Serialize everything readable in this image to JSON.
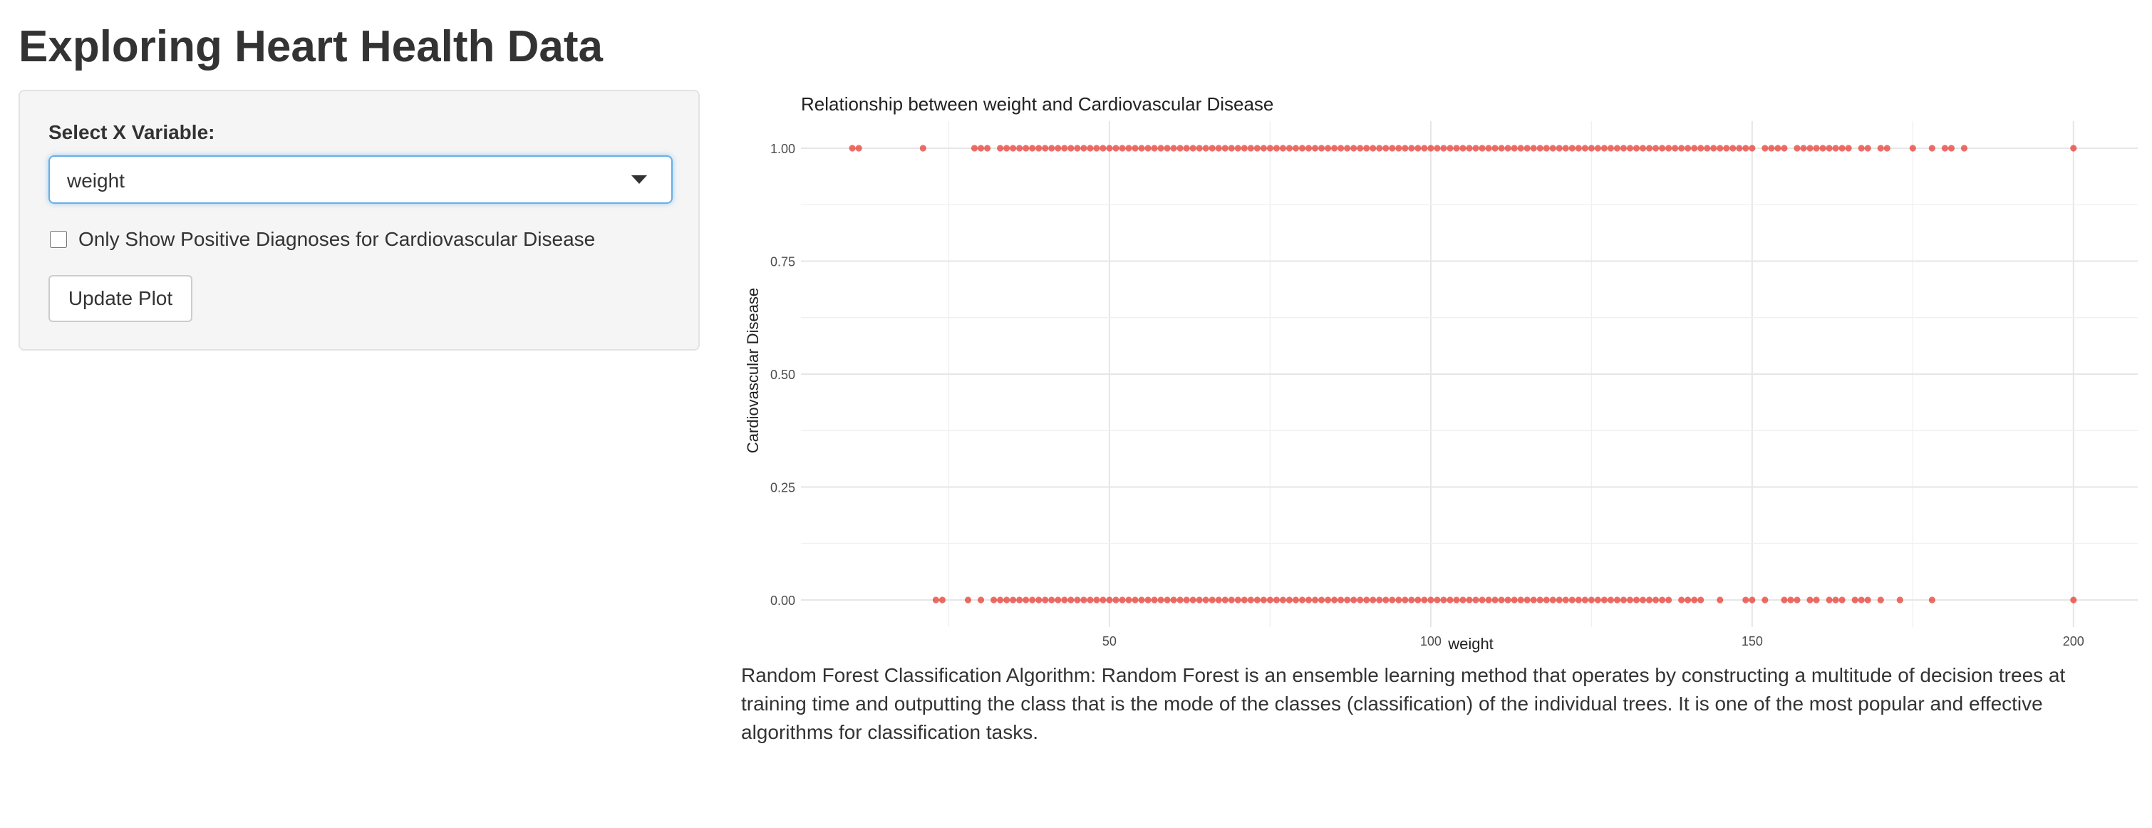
{
  "page": {
    "title": "Exploring Heart Health Data"
  },
  "sidebar": {
    "select_label": "Select X Variable:",
    "select_value": "weight",
    "checkbox_label": "Only Show Positive Diagnoses for Cardiovascular Disease",
    "checkbox_checked": false,
    "update_button_label": "Update Plot"
  },
  "chart_data": {
    "type": "scatter",
    "title": "Relationship between weight and Cardiovascular Disease",
    "xlabel": "weight",
    "ylabel": "Cardiovascular Disease",
    "xlim": [
      2,
      210
    ],
    "ylim": [
      -0.06,
      1.06
    ],
    "x_ticks": [
      50,
      100,
      150,
      200
    ],
    "y_ticks": [
      0.0,
      0.25,
      0.5,
      0.75,
      1.0
    ],
    "x_tick_labels": [
      "50",
      "100",
      "150",
      "200"
    ],
    "y_tick_labels": [
      "0.00",
      "0.25",
      "0.50",
      "0.75",
      "1.00"
    ],
    "grid": true,
    "point_color": "#e8352b",
    "series": [
      {
        "y": 1,
        "x": [
          10,
          11,
          21,
          29,
          30,
          31,
          33,
          34,
          35,
          36,
          37,
          38,
          39,
          40,
          41,
          42,
          43,
          44,
          45,
          46,
          47,
          48,
          49,
          50,
          51,
          52,
          53,
          54,
          55,
          56,
          57,
          58,
          59,
          60,
          61,
          62,
          63,
          64,
          65,
          66,
          67,
          68,
          69,
          70,
          71,
          72,
          73,
          74,
          75,
          76,
          77,
          78,
          79,
          80,
          81,
          82,
          83,
          84,
          85,
          86,
          87,
          88,
          89,
          90,
          91,
          92,
          93,
          94,
          95,
          96,
          97,
          98,
          99,
          100,
          101,
          102,
          103,
          104,
          105,
          106,
          107,
          108,
          109,
          110,
          111,
          112,
          113,
          114,
          115,
          116,
          117,
          118,
          119,
          120,
          121,
          122,
          123,
          124,
          125,
          126,
          127,
          128,
          129,
          130,
          131,
          132,
          133,
          134,
          135,
          136,
          137,
          138,
          139,
          140,
          141,
          142,
          143,
          144,
          145,
          146,
          147,
          148,
          149,
          150,
          152,
          153,
          154,
          155,
          157,
          158,
          159,
          160,
          161,
          162,
          163,
          164,
          165,
          167,
          168,
          170,
          171,
          175,
          178,
          180,
          181,
          183,
          200
        ]
      },
      {
        "y": 0,
        "x": [
          23,
          24,
          28,
          30,
          32,
          33,
          34,
          35,
          36,
          37,
          38,
          39,
          40,
          41,
          42,
          43,
          44,
          45,
          46,
          47,
          48,
          49,
          50,
          51,
          52,
          53,
          54,
          55,
          56,
          57,
          58,
          59,
          60,
          61,
          62,
          63,
          64,
          65,
          66,
          67,
          68,
          69,
          70,
          71,
          72,
          73,
          74,
          75,
          76,
          77,
          78,
          79,
          80,
          81,
          82,
          83,
          84,
          85,
          86,
          87,
          88,
          89,
          90,
          91,
          92,
          93,
          94,
          95,
          96,
          97,
          98,
          99,
          100,
          101,
          102,
          103,
          104,
          105,
          106,
          107,
          108,
          109,
          110,
          111,
          112,
          113,
          114,
          115,
          116,
          117,
          118,
          119,
          120,
          121,
          122,
          123,
          124,
          125,
          126,
          127,
          128,
          129,
          130,
          131,
          132,
          133,
          134,
          135,
          136,
          137,
          139,
          140,
          141,
          142,
          145,
          149,
          150,
          152,
          155,
          156,
          157,
          159,
          160,
          162,
          163,
          164,
          166,
          167,
          168,
          170,
          173,
          178,
          200
        ]
      }
    ]
  },
  "description": "Random Forest Classification Algorithm: Random Forest is an ensemble learning method that operates by constructing a multitude of decision trees at training time and outputting the class that is the mode of the classes (classification) of the individual trees. It is one of the most popular and effective algorithms for classification tasks."
}
